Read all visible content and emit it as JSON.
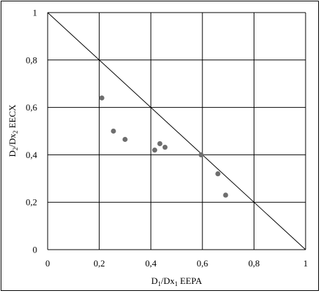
{
  "chart_data": {
    "type": "scatter",
    "xlabel": {
      "pre": "D",
      "sub1": "1",
      "mid": "/Dx",
      "sub2": "1",
      "post": " EEPA"
    },
    "ylabel": {
      "pre": "D",
      "sub1": "2",
      "mid": "/Dx",
      "sub2": "2",
      "post": " EECX"
    },
    "xlim": [
      0,
      1
    ],
    "ylim": [
      0,
      1
    ],
    "x_ticks": [
      0,
      0.2,
      0.4,
      0.6,
      0.8,
      1
    ],
    "y_ticks": [
      0,
      0.2,
      0.4,
      0.6,
      0.8,
      1
    ],
    "x_tick_labels": [
      "0",
      "0,2",
      "0,4",
      "0,6",
      "0,8",
      "1"
    ],
    "y_tick_labels": [
      "0",
      "0,2",
      "0,4",
      "0,6",
      "0,8",
      "1"
    ],
    "grid": true,
    "reference_line": {
      "from": [
        0,
        1
      ],
      "to": [
        1,
        0
      ]
    },
    "point_color": "#6e6e6e",
    "points": [
      {
        "x": 0.21,
        "y": 0.64
      },
      {
        "x": 0.255,
        "y": 0.5
      },
      {
        "x": 0.3,
        "y": 0.465
      },
      {
        "x": 0.415,
        "y": 0.42
      },
      {
        "x": 0.435,
        "y": 0.447
      },
      {
        "x": 0.455,
        "y": 0.432
      },
      {
        "x": 0.595,
        "y": 0.4
      },
      {
        "x": 0.66,
        "y": 0.32
      },
      {
        "x": 0.69,
        "y": 0.23
      }
    ]
  }
}
